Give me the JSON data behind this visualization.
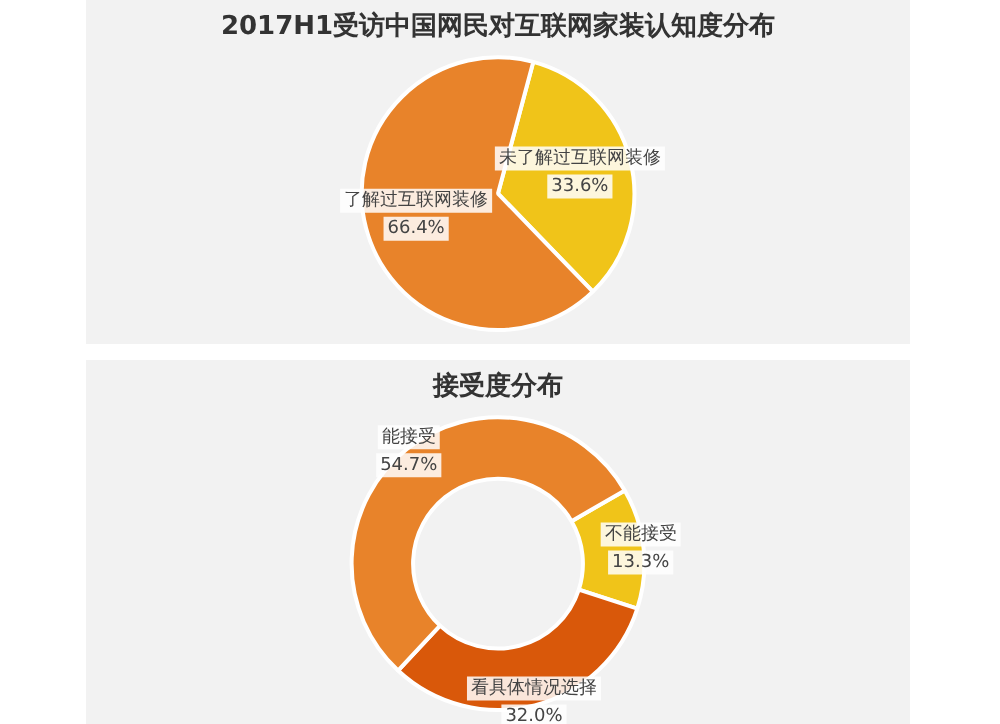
{
  "chart_data": [
    {
      "type": "pie",
      "title": "2017H1受访中国网民对互联网家装认知度分布",
      "categories": [
        "未了解过互联网装修",
        "了解过互联网装修"
      ],
      "values": [
        33.6,
        66.4
      ],
      "colors": [
        "#f0c419",
        "#e8832a"
      ],
      "value_labels": [
        "33.6%",
        "66.4%"
      ]
    },
    {
      "type": "donut",
      "title": "接受度分布",
      "categories": [
        "不能接受",
        "看具体情况选择",
        "能接受"
      ],
      "values": [
        13.3,
        32.0,
        54.7
      ],
      "colors": [
        "#f0c419",
        "#d9580a",
        "#e8832a"
      ],
      "value_labels": [
        "13.3%",
        "32.0%",
        "54.7%"
      ]
    }
  ]
}
